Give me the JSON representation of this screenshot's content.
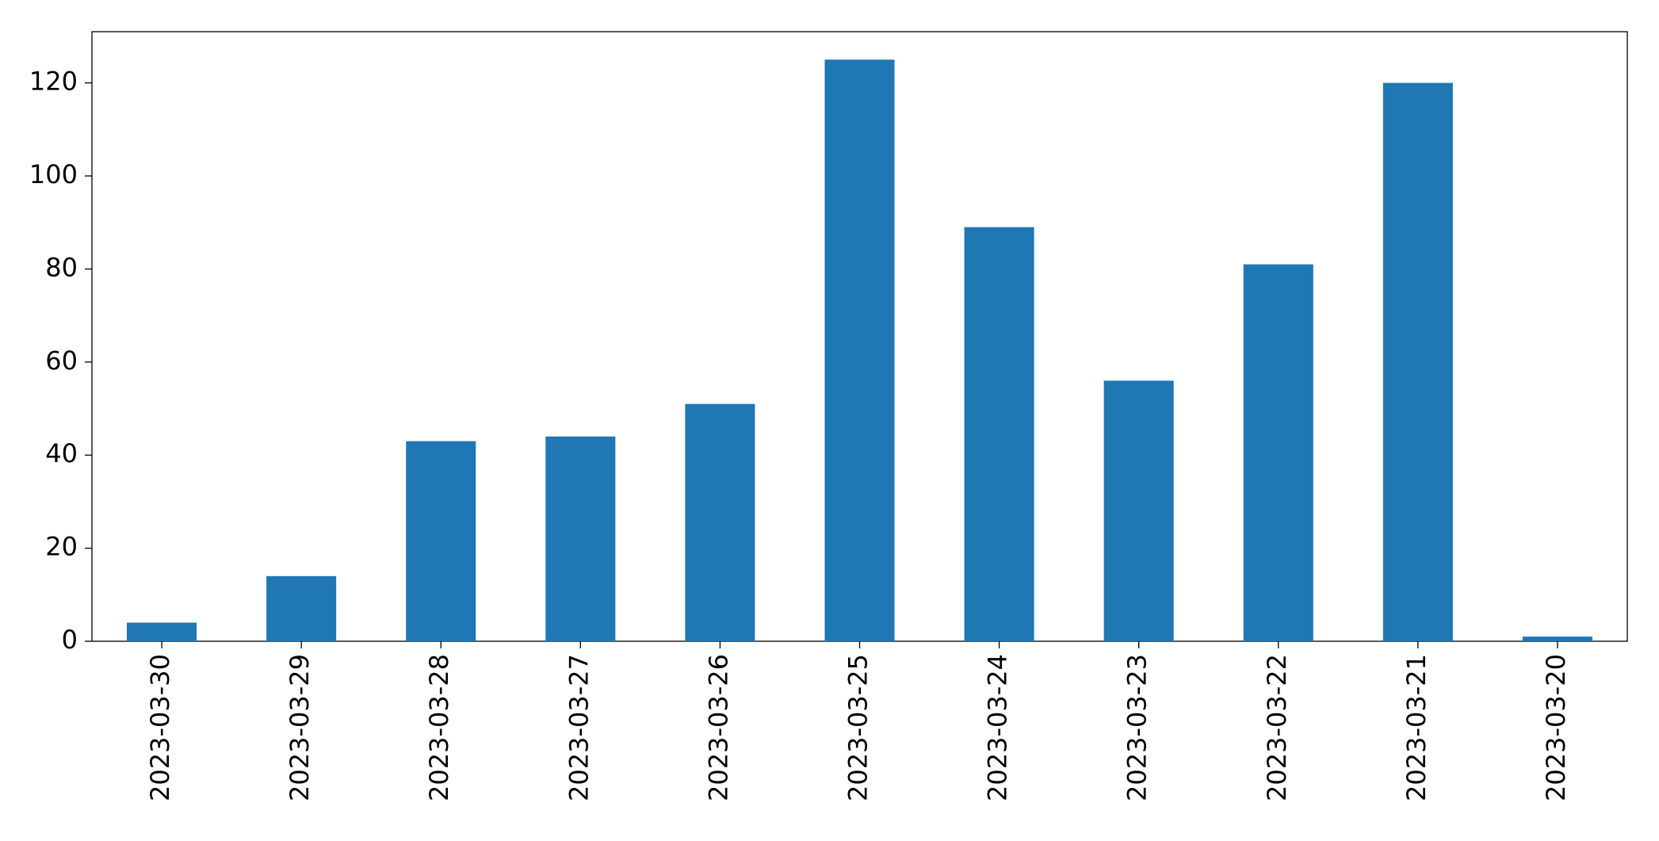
{
  "chart_data": {
    "type": "bar",
    "categories": [
      "2023-03-30",
      "2023-03-29",
      "2023-03-28",
      "2023-03-27",
      "2023-03-26",
      "2023-03-25",
      "2023-03-24",
      "2023-03-23",
      "2023-03-22",
      "2023-03-21",
      "2023-03-20"
    ],
    "values": [
      4,
      14,
      43,
      44,
      51,
      125,
      89,
      56,
      81,
      120,
      1
    ],
    "color": "#1f77b4",
    "ylim": [
      0,
      131
    ],
    "yticks": [
      0,
      20,
      40,
      60,
      80,
      100,
      120
    ],
    "grid": false
  }
}
